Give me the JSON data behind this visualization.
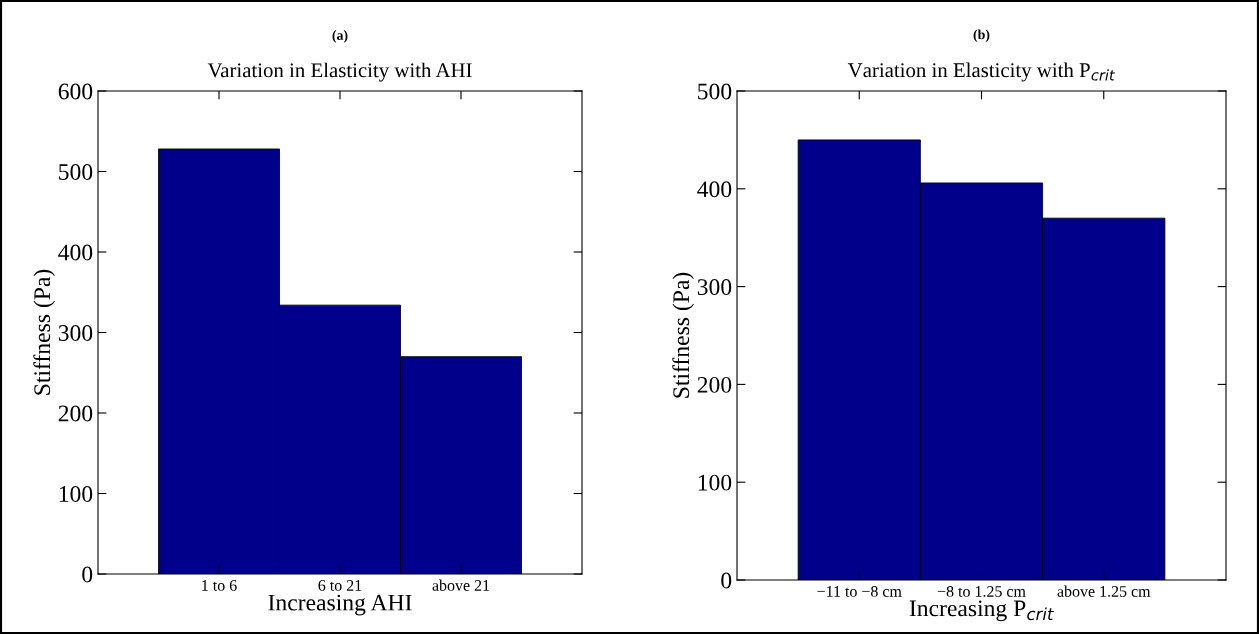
{
  "chart_data": [
    {
      "type": "bar",
      "title": "Variation in Elasticity with AHI",
      "annotations": [
        "(a)"
      ],
      "xlabel": "Increasing AHI",
      "ylabel": "Stiffness (Pa)",
      "categories": [
        "1 to 6",
        "6 to 21",
        "above 21"
      ],
      "values": [
        528,
        334,
        270
      ],
      "color": "#00008b",
      "ylim": [
        0,
        600
      ],
      "yticks": [
        0,
        100,
        200,
        300,
        400,
        500,
        600
      ],
      "grid": false
    },
    {
      "type": "bar",
      "title": "Variation in Elasticity with P$_{crit}$",
      "annotations": [
        "(b)"
      ],
      "xlabel": "Increasing P$_{crit}$",
      "ylabel": "Stiffness (Pa)",
      "categories": [
        "−11 to −8 cm",
        "−8 to 1.25 cm",
        "above 1.25 cm"
      ],
      "values": [
        450,
        406,
        370
      ],
      "color": "#00008b",
      "ylim": [
        0,
        500
      ],
      "yticks": [
        0,
        100,
        200,
        300,
        400,
        500
      ],
      "grid": false
    }
  ]
}
